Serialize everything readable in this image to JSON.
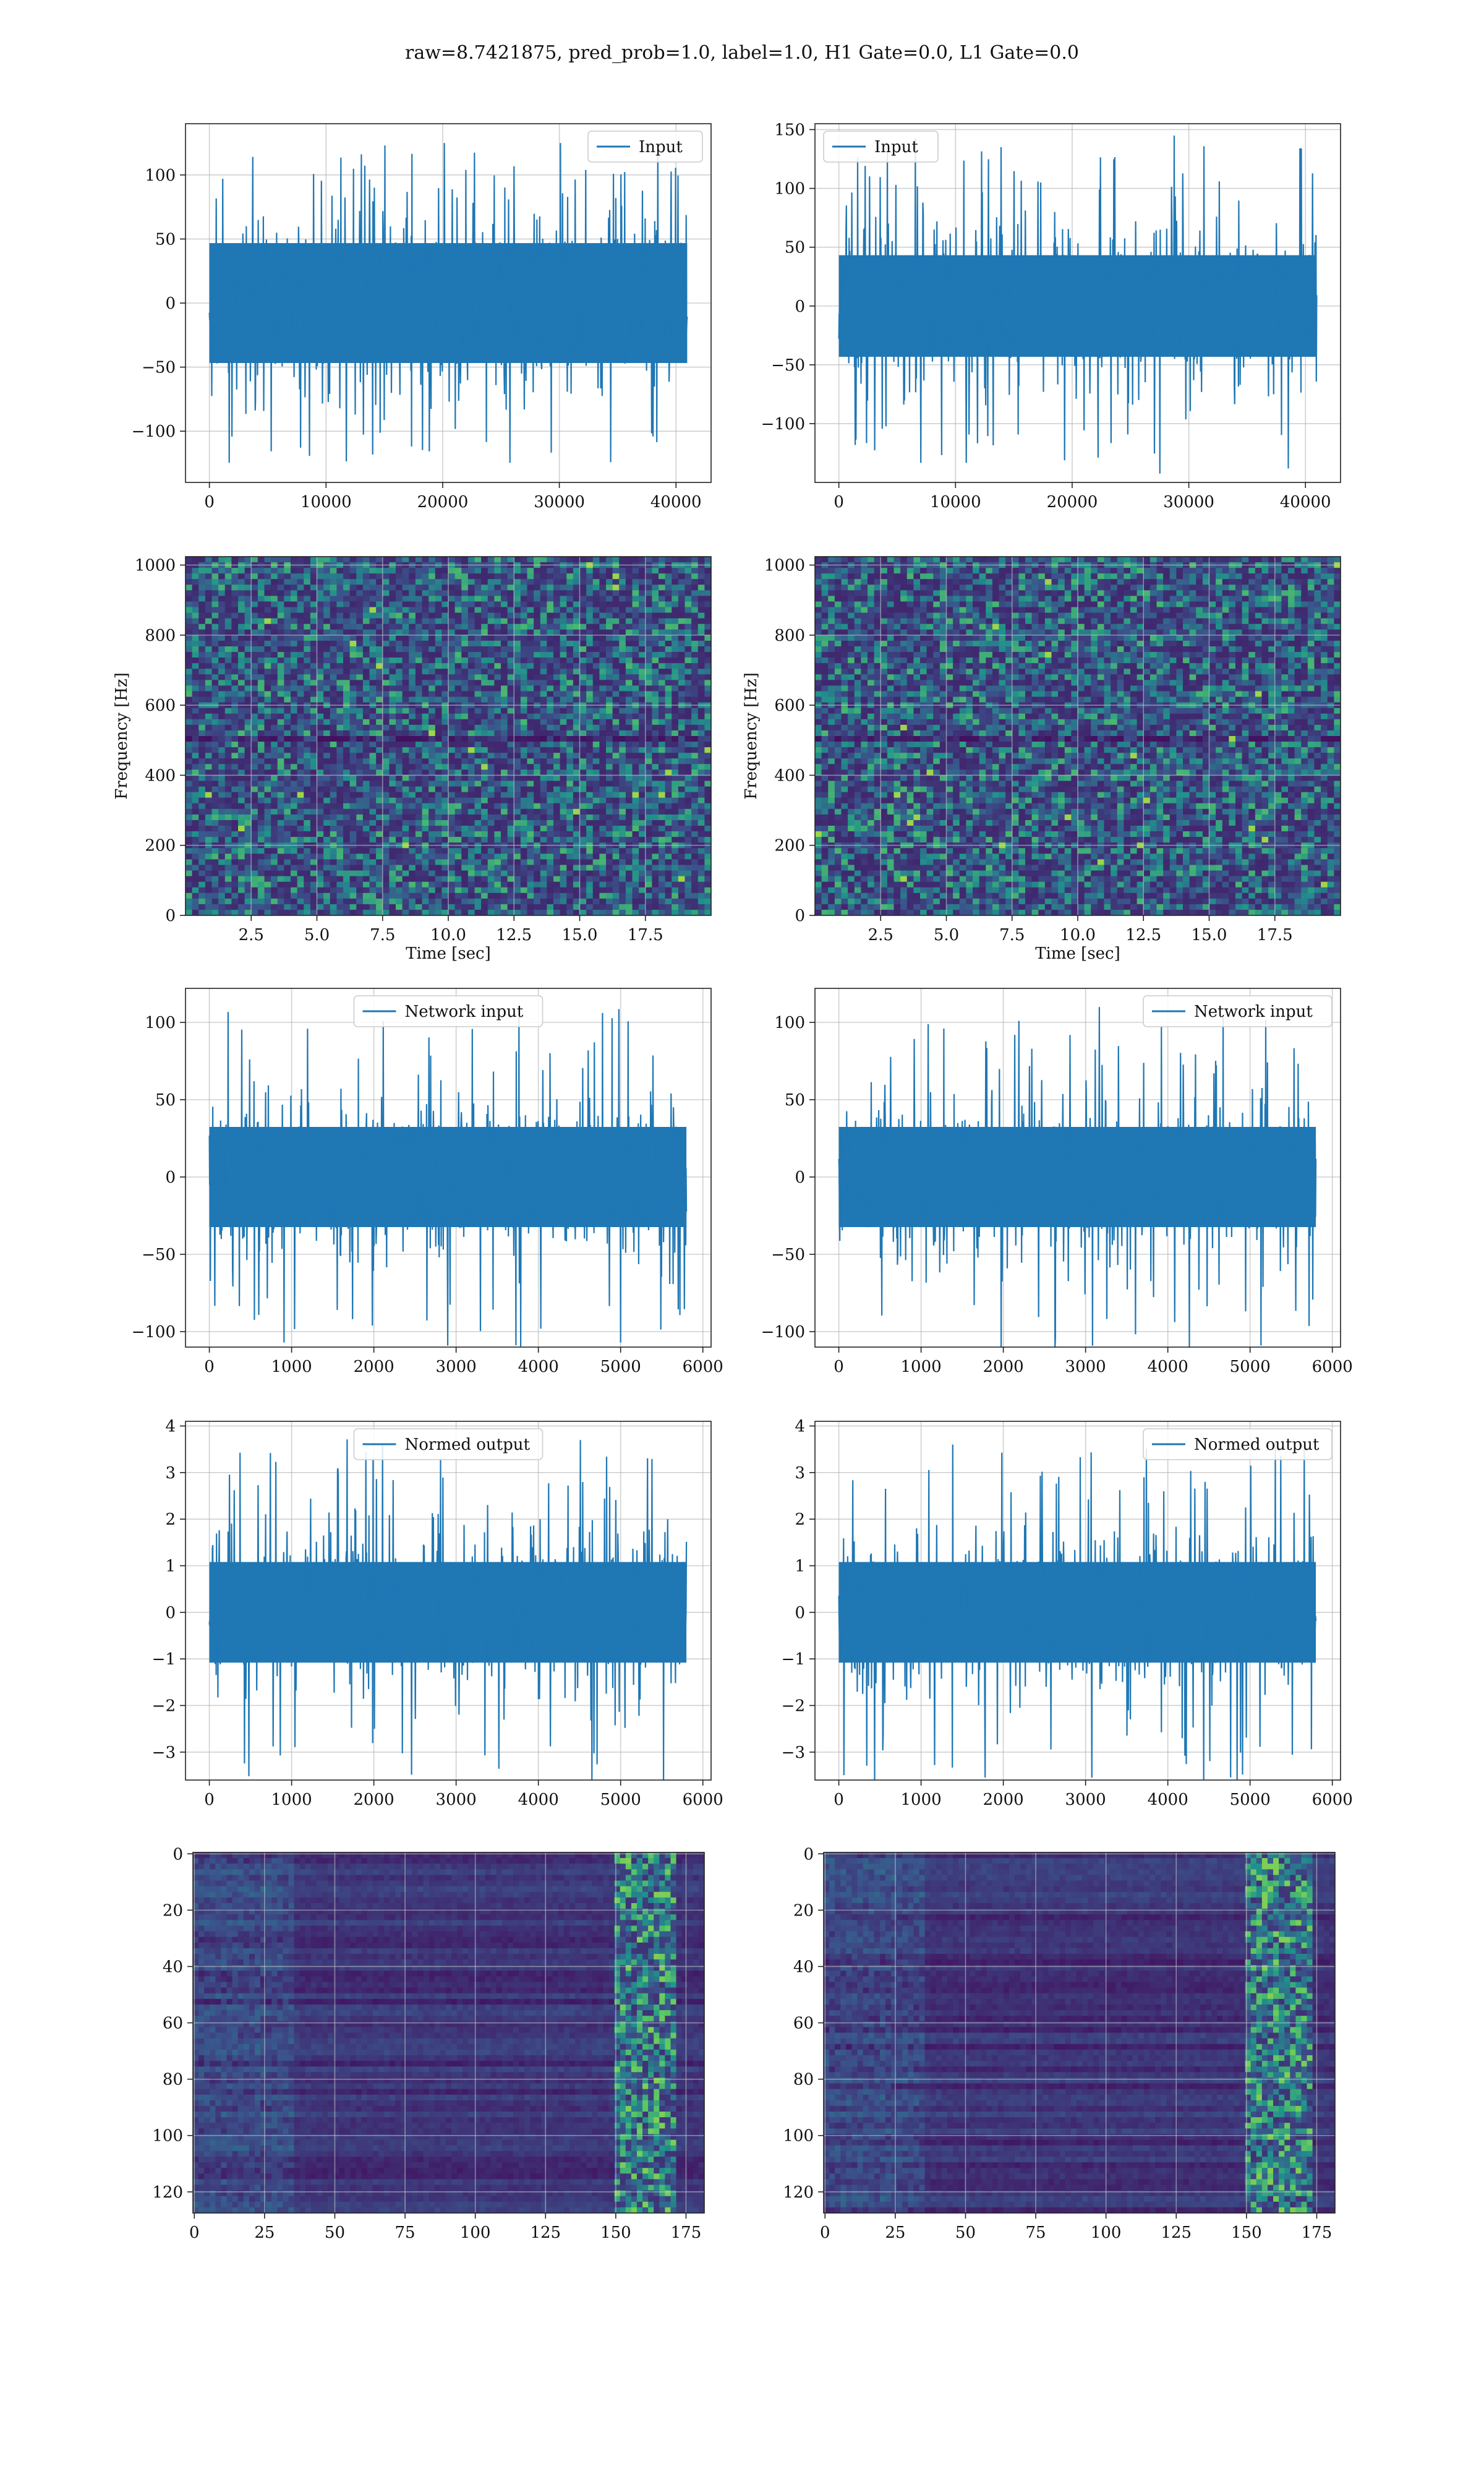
{
  "suptitle": "raw=8.7421875, pred_prob=1.0, label=1.0, H1 Gate=0.0, L1 Gate=0.0",
  "colors": {
    "line": "#1f77b4",
    "grid": "#b0b0b0",
    "viridis_dark": "#440154",
    "viridis_bg": "#3b1f6e",
    "viridis_mid": "#21918c",
    "viridis_light": "#5ec962",
    "viridis_yellow": "#fde725"
  },
  "chart_data": [
    {
      "id": "h1-input",
      "type": "line",
      "legend": "Input",
      "legend_loc": "upper right",
      "xlim": [
        -2048,
        43008
      ],
      "ylim": [
        -140,
        140
      ],
      "xticks": [
        0,
        10000,
        20000,
        30000,
        40000
      ],
      "xtick_labels": [
        "0",
        "10000",
        "20000",
        "30000",
        "40000"
      ],
      "yticks": [
        -100,
        -50,
        0,
        50,
        100
      ],
      "ytick_labels": [
        "−100",
        "−50",
        "0",
        "50",
        "100"
      ],
      "x_range": [
        0,
        40960
      ],
      "envelope": 65,
      "spike_max": 125,
      "seed": 11
    },
    {
      "id": "l1-input",
      "type": "line",
      "legend": "Input",
      "legend_loc": "upper left",
      "xlim": [
        -2048,
        43008
      ],
      "ylim": [
        -150,
        155
      ],
      "xticks": [
        0,
        10000,
        20000,
        30000,
        40000
      ],
      "xtick_labels": [
        "0",
        "10000",
        "20000",
        "30000",
        "40000"
      ],
      "yticks": [
        -100,
        -50,
        0,
        50,
        100,
        150
      ],
      "ytick_labels": [
        "−100",
        "−50",
        "0",
        "50",
        "100",
        "150"
      ],
      "x_range": [
        0,
        40960
      ],
      "envelope": 60,
      "spike_max": 145,
      "seed": 23
    },
    {
      "id": "h1-spectrogram",
      "type": "heatmap",
      "xlabel": "Time [sec]",
      "ylabel": "Frequency [Hz]",
      "xlim": [
        0,
        20
      ],
      "ylim": [
        0,
        1024
      ],
      "xticks": [
        2.5,
        5.0,
        7.5,
        10.0,
        12.5,
        15.0,
        17.5
      ],
      "xtick_labels": [
        "2.5",
        "5.0",
        "7.5",
        "10.0",
        "12.5",
        "15.0",
        "17.5"
      ],
      "yticks": [
        0,
        200,
        400,
        600,
        800,
        1000
      ],
      "ytick_labels": [
        "0",
        "200",
        "400",
        "600",
        "800",
        "1000"
      ],
      "cols": 80,
      "rows": 64,
      "seed": 31,
      "mode": "noise"
    },
    {
      "id": "l1-spectrogram",
      "type": "heatmap",
      "xlabel": "Time [sec]",
      "ylabel": "Frequency [Hz]",
      "xlim": [
        0,
        20
      ],
      "ylim": [
        0,
        1024
      ],
      "xticks": [
        2.5,
        5.0,
        7.5,
        10.0,
        12.5,
        15.0,
        17.5
      ],
      "xtick_labels": [
        "2.5",
        "5.0",
        "7.5",
        "10.0",
        "12.5",
        "15.0",
        "17.5"
      ],
      "yticks": [
        0,
        200,
        400,
        600,
        800,
        1000
      ],
      "ytick_labels": [
        "0",
        "200",
        "400",
        "600",
        "800",
        "1000"
      ],
      "cols": 80,
      "rows": 64,
      "seed": 47,
      "mode": "noise"
    },
    {
      "id": "h1-network-input",
      "type": "line",
      "legend": "Network input",
      "legend_loc": "upper center",
      "xlim": [
        -290,
        6100
      ],
      "ylim": [
        -110,
        122
      ],
      "xticks": [
        0,
        1000,
        2000,
        3000,
        4000,
        5000,
        6000
      ],
      "xtick_labels": [
        "0",
        "1000",
        "2000",
        "3000",
        "4000",
        "5000",
        "6000"
      ],
      "yticks": [
        -100,
        -50,
        0,
        50,
        100
      ],
      "ytick_labels": [
        "−100",
        "−50",
        "0",
        "50",
        "100"
      ],
      "x_range": [
        0,
        5800
      ],
      "envelope": 45,
      "spike_max": 112,
      "seed": 53
    },
    {
      "id": "l1-network-input",
      "type": "line",
      "legend": "Network input",
      "legend_loc": "upper right",
      "xlim": [
        -290,
        6100
      ],
      "ylim": [
        -110,
        122
      ],
      "xticks": [
        0,
        1000,
        2000,
        3000,
        4000,
        5000,
        6000
      ],
      "xtick_labels": [
        "0",
        "1000",
        "2000",
        "3000",
        "4000",
        "5000",
        "6000"
      ],
      "yticks": [
        -100,
        -50,
        0,
        50,
        100
      ],
      "ytick_labels": [
        "−100",
        "−50",
        "0",
        "50",
        "100"
      ],
      "x_range": [
        0,
        5800
      ],
      "envelope": 45,
      "spike_max": 112,
      "seed": 61
    },
    {
      "id": "h1-normed-output",
      "type": "line",
      "legend": "Normed output",
      "legend_loc": "upper center",
      "xlim": [
        -290,
        6100
      ],
      "ylim": [
        -3.6,
        4.1
      ],
      "xticks": [
        0,
        1000,
        2000,
        3000,
        4000,
        5000,
        6000
      ],
      "xtick_labels": [
        "0",
        "1000",
        "2000",
        "3000",
        "4000",
        "5000",
        "6000"
      ],
      "yticks": [
        -3,
        -2,
        -1,
        0,
        1,
        2,
        3,
        4
      ],
      "ytick_labels": [
        "−3",
        "−2",
        "−1",
        "0",
        "1",
        "2",
        "3",
        "4"
      ],
      "x_range": [
        0,
        5800
      ],
      "envelope": 1.5,
      "spike_max": 3.8,
      "seed": 71
    },
    {
      "id": "l1-normed-output",
      "type": "line",
      "legend": "Normed output",
      "legend_loc": "upper right",
      "xlim": [
        -290,
        6100
      ],
      "ylim": [
        -3.6,
        4.1
      ],
      "xticks": [
        0,
        1000,
        2000,
        3000,
        4000,
        5000,
        6000
      ],
      "xtick_labels": [
        "0",
        "1000",
        "2000",
        "3000",
        "4000",
        "5000",
        "6000"
      ],
      "yticks": [
        -3,
        -2,
        -1,
        0,
        1,
        2,
        3,
        4
      ],
      "ytick_labels": [
        "−3",
        "−2",
        "−1",
        "0",
        "1",
        "2",
        "3",
        "4"
      ],
      "x_range": [
        0,
        5800
      ],
      "envelope": 1.5,
      "spike_max": 3.7,
      "seed": 83
    },
    {
      "id": "h1-feature-map",
      "type": "heatmap",
      "xlim": [
        -0.5,
        181.5
      ],
      "ylim": [
        127.5,
        -0.5
      ],
      "y_inverted": true,
      "xticks": [
        0,
        25,
        50,
        75,
        100,
        125,
        150,
        175
      ],
      "xtick_labels": [
        "0",
        "25",
        "50",
        "75",
        "100",
        "125",
        "150",
        "175"
      ],
      "yticks": [
        0,
        20,
        40,
        60,
        80,
        100,
        120
      ],
      "ytick_labels": [
        "0",
        "20",
        "40",
        "60",
        "80",
        "100",
        "120"
      ],
      "cols": 182,
      "rows": 128,
      "seed": 97,
      "mode": "features",
      "band": [
        150,
        170
      ]
    },
    {
      "id": "l1-feature-map",
      "type": "heatmap",
      "xlim": [
        -0.5,
        181.5
      ],
      "ylim": [
        127.5,
        -0.5
      ],
      "y_inverted": true,
      "xticks": [
        0,
        25,
        50,
        75,
        100,
        125,
        150,
        175
      ],
      "xtick_labels": [
        "0",
        "25",
        "50",
        "75",
        "100",
        "125",
        "150",
        "175"
      ],
      "yticks": [
        0,
        20,
        40,
        60,
        80,
        100,
        120
      ],
      "ytick_labels": [
        "0",
        "20",
        "40",
        "60",
        "80",
        "100",
        "120"
      ],
      "cols": 182,
      "rows": 128,
      "seed": 101,
      "mode": "features",
      "band": [
        150,
        172
      ]
    }
  ]
}
